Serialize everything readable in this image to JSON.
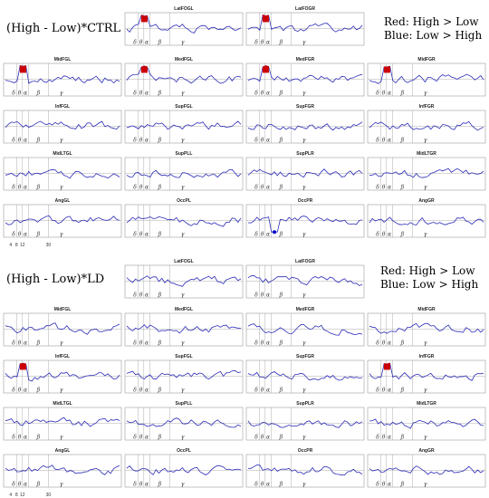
{
  "sections": [
    {
      "heading": "(High - Low)*CTRL",
      "legend": [
        "Red: High > Low",
        "Blue: Low > High"
      ],
      "panels": [
        "LatFOGL",
        "LatFOGR",
        "MidFGL",
        "MedFGL",
        "MedFGR",
        "MidFGR",
        "InfFGL",
        "SupFGL",
        "SupFGR",
        "InfFGR",
        "MidLTGL",
        "SupPLL",
        "SupPLR",
        "MidLTGR",
        "AngGL",
        "OccPL",
        "OccPR",
        "AngGR"
      ]
    },
    {
      "heading": "(High - Low)*LD",
      "legend": [
        "Red: High > Low",
        "Blue: Low > High"
      ],
      "panels": [
        "LatFOGL",
        "LatFOGR",
        "MidFGL",
        "MedFGL",
        "MedFGR",
        "MidFGR",
        "InfFGL",
        "SupFGL",
        "SupFGR",
        "InfFGR",
        "MidLTGL",
        "SupPLL",
        "SupPLR",
        "MidLTGR",
        "AngGL",
        "OccPL",
        "OccPR",
        "AngGR"
      ]
    }
  ],
  "bands": [
    "δ",
    "θ",
    "α",
    "β",
    "γ"
  ],
  "freq_ticks": [
    "4",
    "8",
    "12",
    "30"
  ],
  "colors": {
    "trace": "#2b2bb8",
    "high_gt_low": "#cc0000",
    "low_gt_high": "#0000cc",
    "grid": "#999999"
  },
  "chart_data": {
    "type": "line",
    "x_unit": "Hz",
    "band_boundaries": [
      4,
      8,
      12,
      30
    ],
    "xlim": [
      1,
      50
    ],
    "series_points": 40,
    "significant_high_gt_low": {
      "(High - Low)*CTRL": [
        "LatFOGL",
        "LatFOGR",
        "MidFGL",
        "MedFGL",
        "MedFGR",
        "MidFGR"
      ],
      "(High - Low)*LD": [
        "InfFGL",
        "InfFGR"
      ]
    },
    "significant_low_gt_high": {
      "(High - Low)*CTRL": [
        "OccPR"
      ],
      "(High - Low)*LD": []
    }
  }
}
